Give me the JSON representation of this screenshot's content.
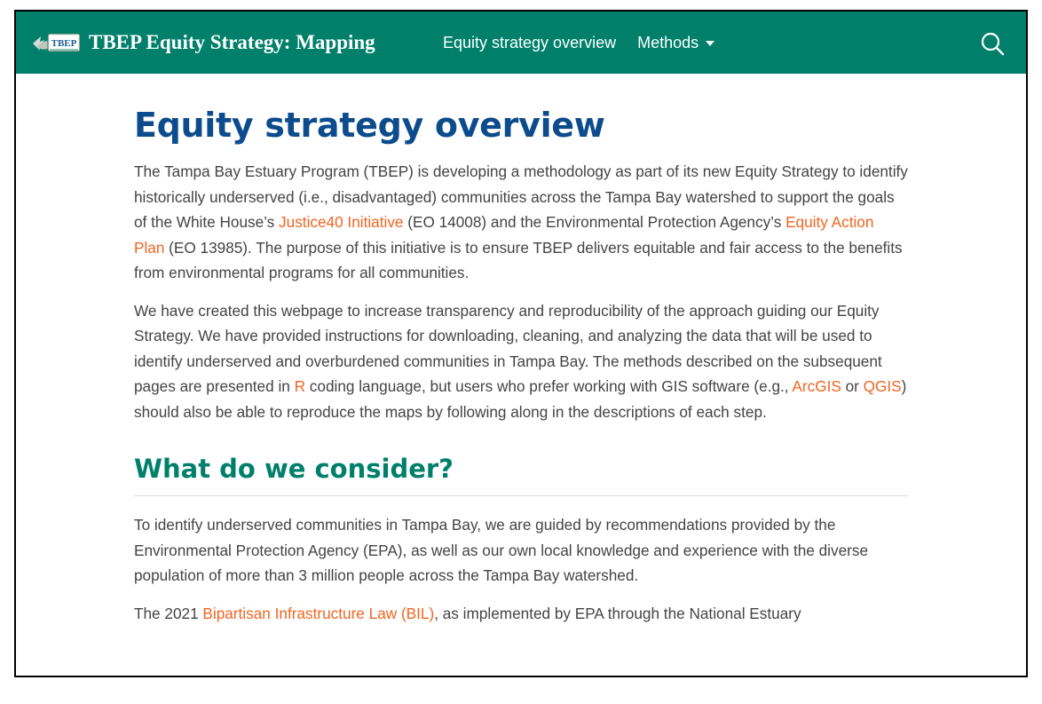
{
  "navbar": {
    "brand_logo_text": "TBEP",
    "brand_title": "TBEP Equity Strategy: Mapping",
    "nav_overview": "Equity strategy overview",
    "nav_methods": "Methods"
  },
  "colors": {
    "navbar_bg": "#00806b",
    "h1": "#0d4c8c",
    "h2": "#00806b",
    "link": "#f26522",
    "body_text": "#444444"
  },
  "page": {
    "title": "Equity strategy overview",
    "p1": {
      "t1": "The Tampa Bay Estuary Program (TBEP) is developing a methodology as part of its new Equity Strategy to identify historically underserved (i.e., disadvantaged) communities across the Tampa Bay watershed to support the goals of the White House’s ",
      "link1": "Justice40 Initiative",
      "t2": " (EO 14008) and the Environmental Protection Agency’s ",
      "link2": "Equity Action Plan",
      "t3": " (EO 13985). The purpose of this initiative is to ensure TBEP delivers equitable and fair access to the benefits from environmental programs for all communities."
    },
    "p2": {
      "t1": "We have created this webpage to increase transparency and reproducibility of the approach guiding our Equity Strategy. We have provided instructions for downloading, cleaning, and analyzing the data that will be used to identify underserved and overburdened communities in Tampa Bay. The methods described on the subsequent pages are presented in ",
      "link_r": "R",
      "t2": " coding language, but users who prefer working with GIS software (e.g., ",
      "link_arcgis": "ArcGIS",
      "t3": " or ",
      "link_qgis": "QGIS",
      "t4": ") should also be able to reproduce the maps by following along in the descriptions of each step."
    },
    "section_heading": "What do we consider?",
    "p3": "To identify underserved communities in Tampa Bay, we are guided by recommendations provided by the Environmental Protection Agency (EPA), as well as our own local knowledge and experience with the diverse population of more than 3 million people across the Tampa Bay watershed.",
    "p4": {
      "t1": "The 2021 ",
      "link_bil": "Bipartisan Infrastructure Law (BIL)",
      "t2": ", as implemented by EPA through the National Estuary"
    }
  },
  "icons": {
    "logo": "tbep-logo-icon",
    "caret": "caret-down-icon",
    "search": "search-icon"
  }
}
